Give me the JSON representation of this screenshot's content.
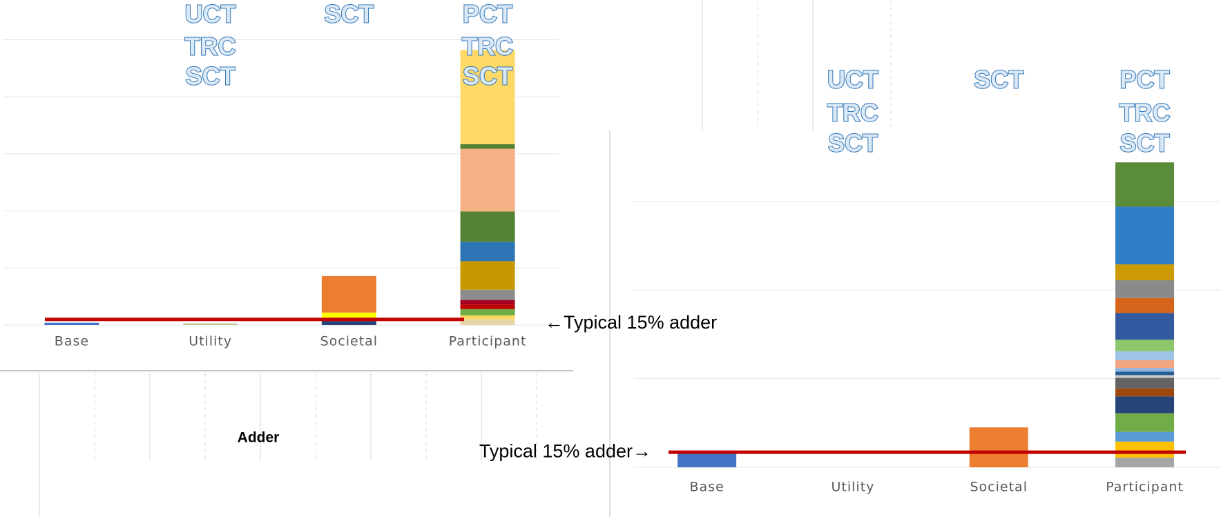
{
  "chart_data": [
    {
      "type": "bar",
      "stacked": true,
      "categories": [
        "Base",
        "Utility",
        "Societal",
        "Participant"
      ],
      "stacks": [
        [
          {
            "value": 0.04,
            "color": "#4472c4"
          }
        ],
        [
          {
            "value": 0.03,
            "color": "#c9c19b"
          }
        ],
        [
          {
            "value": 0.07,
            "color": "#264478"
          },
          {
            "value": 0.05,
            "color": "#c00000"
          },
          {
            "value": 0.1,
            "color": "#ffff00"
          },
          {
            "value": 0.64,
            "color": "#ed7d31"
          }
        ],
        [
          {
            "value": 0.1,
            "color": "#e9d6a8"
          },
          {
            "value": 0.07,
            "color": "#ffd966"
          },
          {
            "value": 0.11,
            "color": "#70ad47"
          },
          {
            "value": 0.08,
            "color": "#c00000"
          },
          {
            "value": 0.08,
            "color": "#a50021"
          },
          {
            "value": 0.18,
            "color": "#8c8c8c"
          },
          {
            "value": 0.5,
            "color": "#c89800"
          },
          {
            "value": 0.34,
            "color": "#2e75b6"
          },
          {
            "value": 0.53,
            "color": "#548235"
          },
          {
            "value": 1.1,
            "color": "#f4b183"
          },
          {
            "value": 0.08,
            "color": "#548235"
          },
          {
            "value": 1.65,
            "color": "#ffd966"
          }
        ]
      ],
      "column_labels": [
        null,
        [
          "UCT",
          "TRC",
          "SCT"
        ],
        [
          "SCT"
        ],
        [
          "PCT",
          "TRC",
          "SCT"
        ]
      ],
      "reference_line": {
        "value": 0.1,
        "color": "#c00000",
        "label": "←Typical 15% adder"
      },
      "xlabel": "Adder",
      "ylim": [
        0,
        5.2
      ],
      "yticks": [
        0,
        1,
        2,
        3,
        4,
        5
      ],
      "grid": true
    },
    {
      "type": "bar",
      "stacked": true,
      "categories": [
        "Base",
        "Utility",
        "Societal",
        "Participant"
      ],
      "stacks": [
        [
          {
            "value": 0.17,
            "color": "#4472c4"
          }
        ],
        [],
        [
          {
            "value": 0.45,
            "color": "#ed7d31"
          }
        ],
        [
          {
            "value": 0.11,
            "color": "#a5a5a5"
          },
          {
            "value": 0.18,
            "color": "#ffc000"
          },
          {
            "value": 0.11,
            "color": "#5b9bd5"
          },
          {
            "value": 0.21,
            "color": "#70ad47"
          },
          {
            "value": 0.19,
            "color": "#264478"
          },
          {
            "value": 0.09,
            "color": "#9e480e"
          },
          {
            "value": 0.12,
            "color": "#636363"
          },
          {
            "value": 0.03,
            "color": "#c9c9c9"
          },
          {
            "value": 0.04,
            "color": "#255e91"
          },
          {
            "value": 0.04,
            "color": "#8fb4e3"
          },
          {
            "value": 0.09,
            "color": "#f4a582"
          },
          {
            "value": 0.1,
            "color": "#9dc3e6"
          },
          {
            "value": 0.13,
            "color": "#8dc66b"
          },
          {
            "value": 0.3,
            "color": "#335aa0"
          },
          {
            "value": 0.17,
            "color": "#d5651d"
          },
          {
            "value": 0.2,
            "color": "#8a8a8a"
          },
          {
            "value": 0.18,
            "color": "#cc9a06"
          },
          {
            "value": 0.65,
            "color": "#2f7ec5"
          },
          {
            "value": 0.5,
            "color": "#5b8c3a"
          }
        ]
      ],
      "column_labels": [
        null,
        [
          "UCT",
          "TRC",
          "SCT"
        ],
        [
          "SCT"
        ],
        [
          "PCT",
          "TRC",
          "SCT"
        ]
      ],
      "reference_line": {
        "value": 0.17,
        "color": "#c00000",
        "label": "Typical 15% adder→"
      },
      "ylim": [
        0,
        3.8
      ],
      "yticks": [
        0,
        1,
        2,
        3
      ],
      "grid": true
    }
  ]
}
